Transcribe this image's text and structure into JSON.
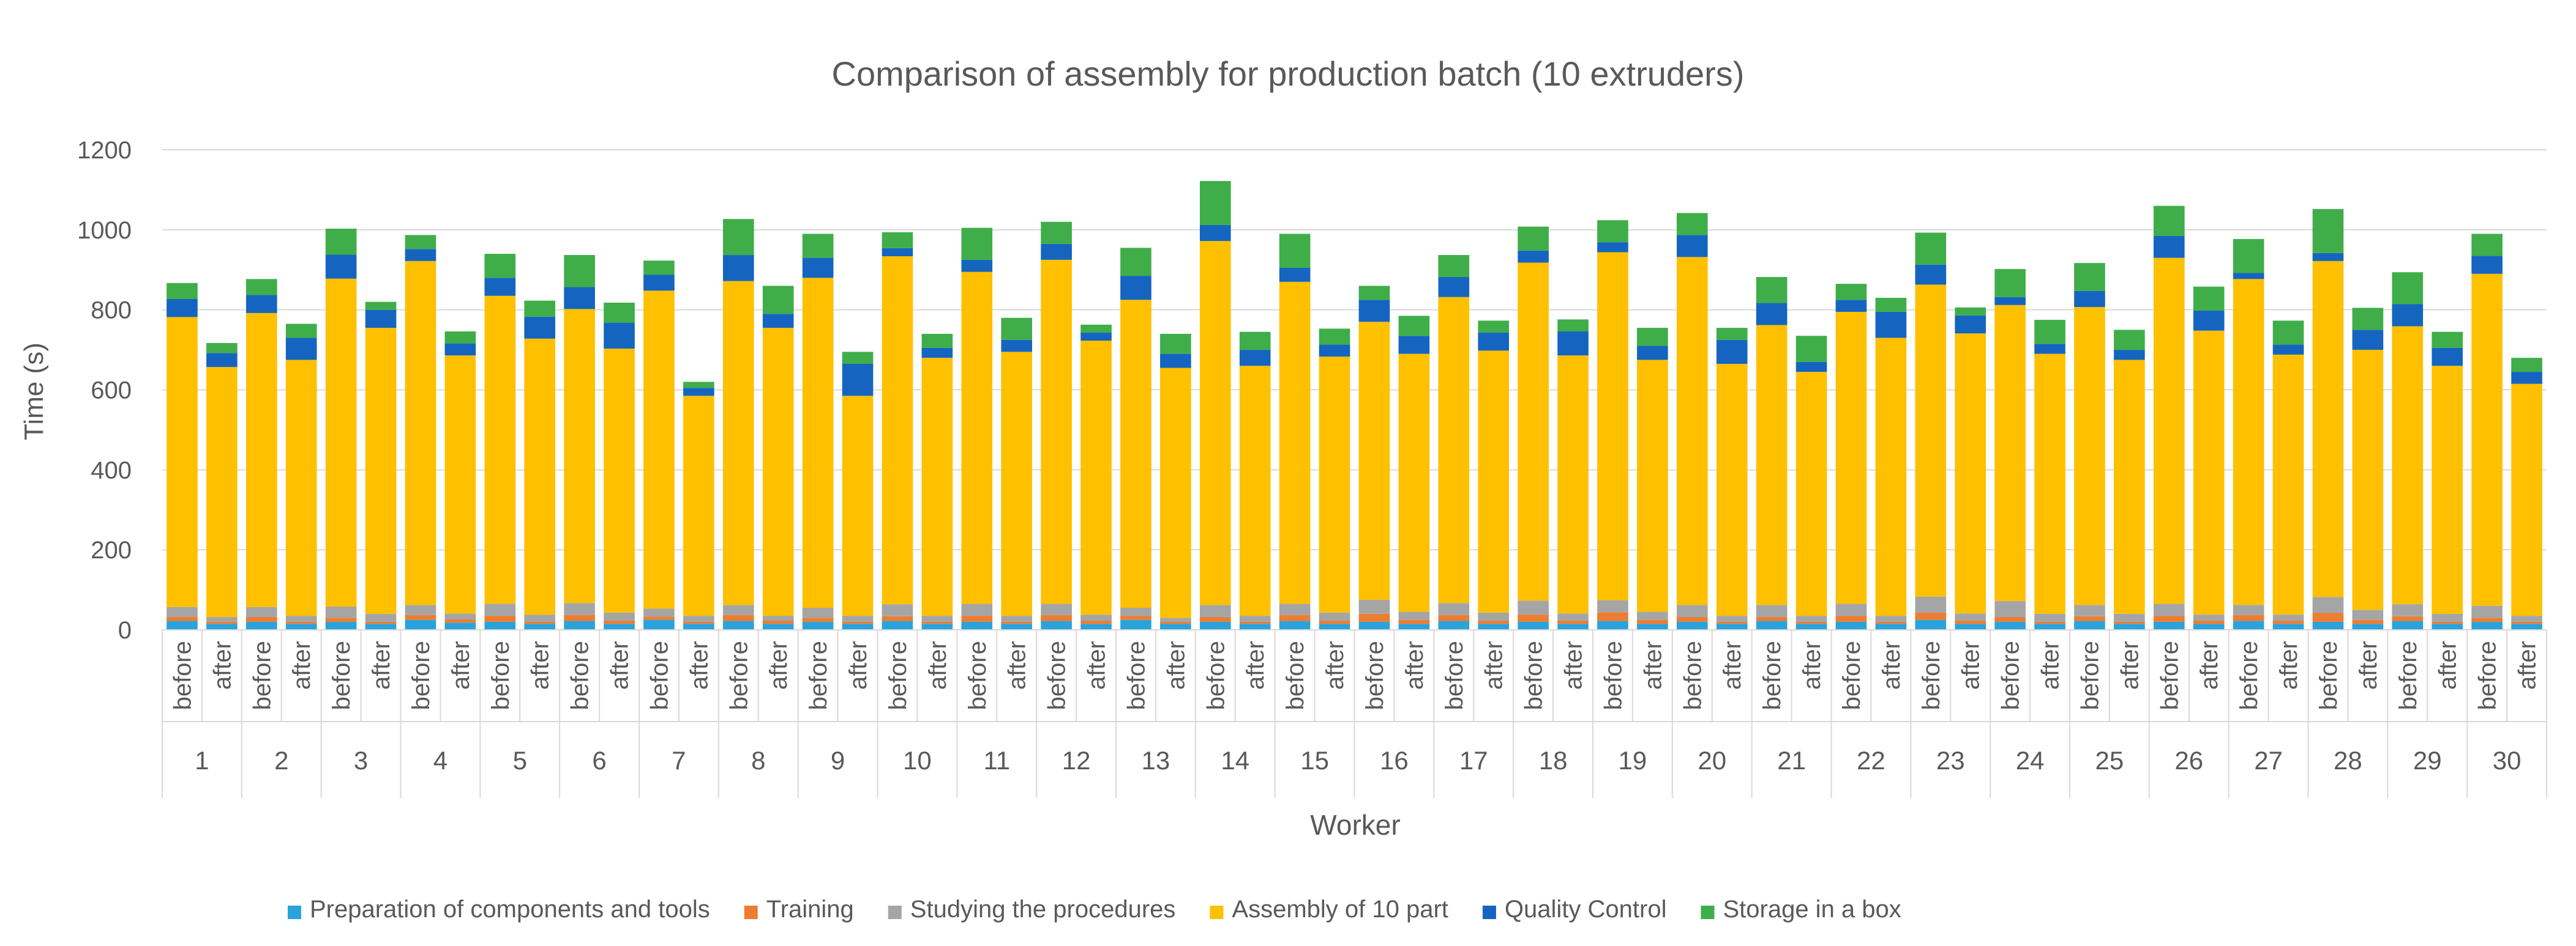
{
  "chart_data": {
    "type": "bar",
    "stacked": true,
    "title": "Comparison of assembly for production batch (10 extruders)",
    "xlabel": "Worker",
    "ylabel": "Time (s)",
    "ylim": [
      0,
      1200
    ],
    "y_ticks": [
      0,
      200,
      400,
      600,
      800,
      1000,
      1200
    ],
    "grid": true,
    "legend_position": "bottom",
    "conditions": [
      "before",
      "after"
    ],
    "workers": [
      "1",
      "2",
      "3",
      "4",
      "5",
      "6",
      "7",
      "8",
      "9",
      "10",
      "11",
      "12",
      "13",
      "14",
      "15",
      "16",
      "17",
      "18",
      "19",
      "20",
      "21",
      "22",
      "23",
      "24",
      "25",
      "26",
      "27",
      "28",
      "29",
      "30"
    ],
    "series": [
      {
        "name": "Preparation of components and tools",
        "color": "#29a3dc",
        "values": [
          22,
          15,
          20,
          15,
          20,
          15,
          25,
          18,
          20,
          15,
          22,
          15,
          25,
          15,
          22,
          15,
          20,
          15,
          22,
          15,
          20,
          15,
          22,
          15,
          25,
          15,
          20,
          15,
          22,
          15,
          20,
          15,
          22,
          15,
          20,
          15,
          22,
          15,
          20,
          15,
          22,
          15,
          20,
          15,
          25,
          15,
          20,
          15,
          22,
          15,
          20,
          15,
          22,
          15,
          20,
          15,
          22,
          15,
          20,
          15
        ]
      },
      {
        "name": "Training",
        "color": "#ed7d31",
        "values": [
          10,
          5,
          12,
          5,
          10,
          5,
          12,
          8,
          15,
          5,
          15,
          8,
          8,
          5,
          15,
          8,
          10,
          5,
          12,
          5,
          15,
          5,
          15,
          8,
          10,
          5,
          12,
          5,
          15,
          8,
          20,
          10,
          15,
          8,
          18,
          8,
          22,
          10,
          12,
          5,
          10,
          5,
          15,
          5,
          18,
          8,
          12,
          5,
          12,
          5,
          15,
          8,
          15,
          8,
          22,
          10,
          12,
          5,
          10,
          5
        ]
      },
      {
        "name": "Studying the procedures",
        "color": "#a5a5a5",
        "values": [
          25,
          12,
          25,
          15,
          28,
          20,
          25,
          15,
          30,
          18,
          30,
          20,
          20,
          15,
          25,
          12,
          25,
          15,
          30,
          15,
          30,
          15,
          28,
          15,
          20,
          10,
          30,
          15,
          28,
          20,
          35,
          20,
          30,
          20,
          35,
          18,
          30,
          20,
          30,
          15,
          30,
          15,
          30,
          15,
          40,
          18,
          40,
          20,
          28,
          20,
          30,
          15,
          25,
          15,
          40,
          25,
          30,
          20,
          30,
          15
        ]
      },
      {
        "name": "Assembly of 10 part",
        "color": "#ffc000",
        "values": [
          725,
          625,
          735,
          640,
          820,
          715,
          860,
          645,
          770,
          690,
          735,
          660,
          795,
          550,
          810,
          720,
          825,
          550,
          870,
          645,
          830,
          660,
          860,
          685,
          770,
          625,
          910,
          625,
          805,
          640,
          695,
          645,
          765,
          655,
          845,
          645,
          870,
          630,
          870,
          630,
          700,
          610,
          730,
          695,
          780,
          700,
          740,
          650,
          745,
          635,
          865,
          710,
          815,
          650,
          840,
          650,
          695,
          620,
          830,
          580
        ]
      },
      {
        "name": "Quality Control",
        "color": "#1565c0",
        "values": [
          45,
          35,
          45,
          55,
          60,
          45,
          30,
          30,
          45,
          55,
          55,
          65,
          40,
          20,
          65,
          35,
          50,
          80,
          20,
          25,
          30,
          30,
          40,
          20,
          60,
          35,
          40,
          40,
          35,
          30,
          55,
          45,
          50,
          45,
          30,
          60,
          25,
          35,
          55,
          60,
          55,
          25,
          30,
          65,
          50,
          45,
          20,
          25,
          40,
          25,
          55,
          50,
          15,
          25,
          20,
          50,
          55,
          45,
          45,
          30
        ]
      },
      {
        "name": "Storage in a box",
        "color": "#3fae49",
        "values": [
          40,
          25,
          40,
          35,
          65,
          20,
          35,
          30,
          60,
          40,
          80,
          50,
          35,
          15,
          90,
          70,
          60,
          30,
          40,
          35,
          80,
          55,
          55,
          20,
          70,
          50,
          110,
          45,
          85,
          40,
          35,
          50,
          55,
          30,
          60,
          30,
          55,
          45,
          55,
          30,
          65,
          65,
          40,
          35,
          80,
          20,
          70,
          60,
          70,
          50,
          75,
          60,
          85,
          60,
          110,
          55,
          80,
          40,
          55,
          35
        ]
      }
    ]
  }
}
